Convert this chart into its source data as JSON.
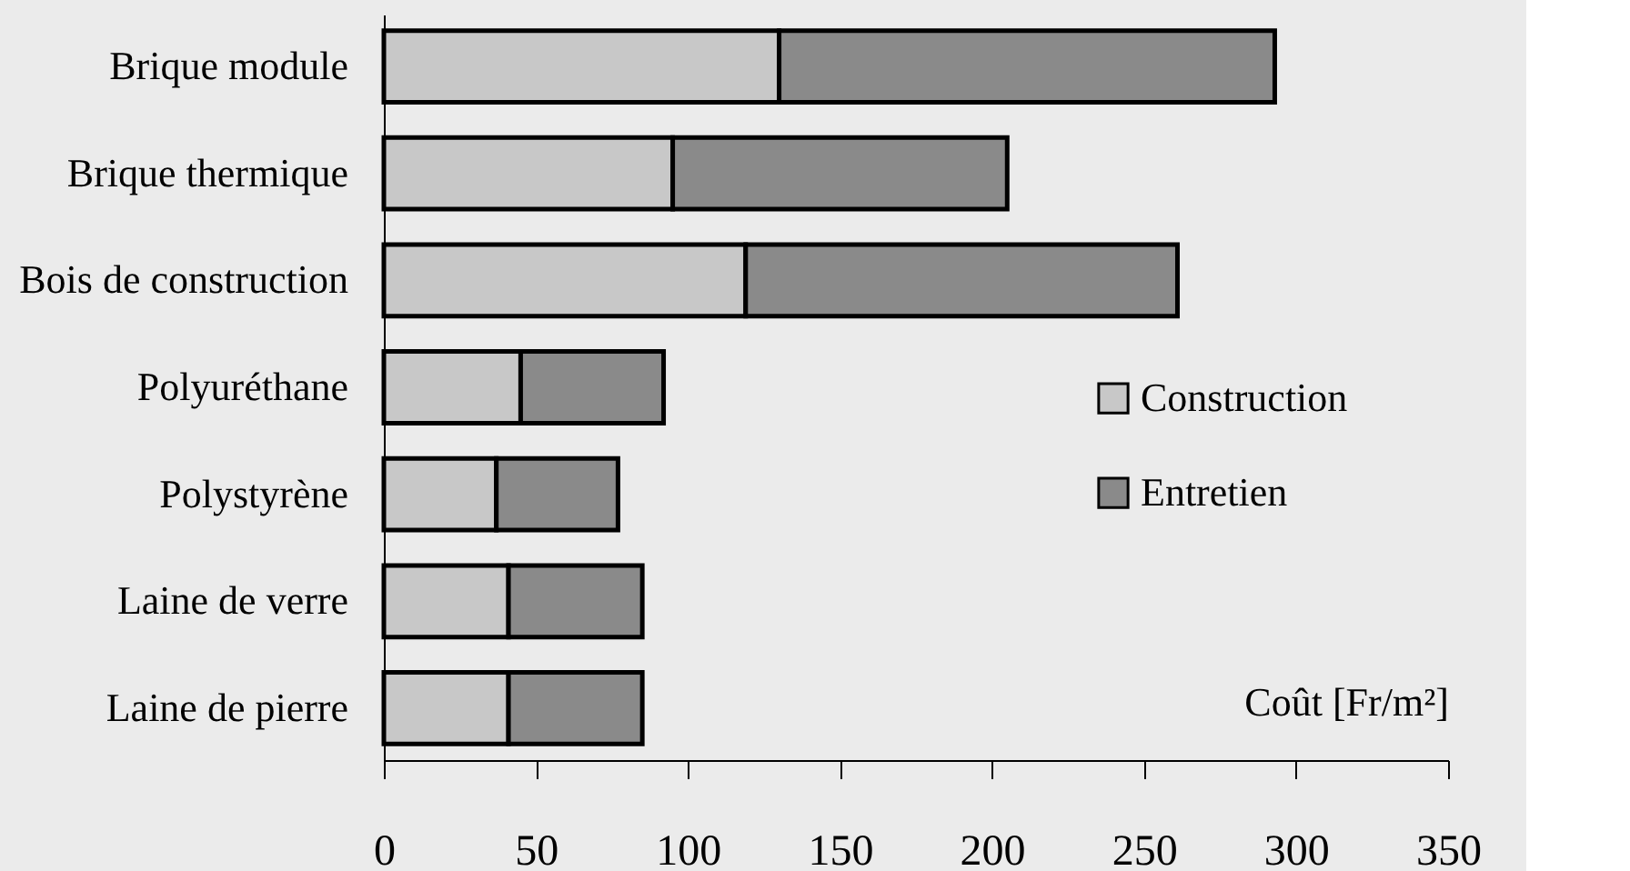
{
  "chart_data": {
    "type": "bar",
    "orientation": "horizontal",
    "stacked": true,
    "categories": [
      "Brique module",
      "Brique thermique",
      "Bois de construction",
      "Polyuréthane",
      "Polystyrène",
      "Laine de verre",
      "Laine de pierre"
    ],
    "series": [
      {
        "name": "Construction",
        "color": "#c8c8c8",
        "values": [
          130,
          95,
          119,
          45,
          37,
          41,
          41
        ]
      },
      {
        "name": "Entretien",
        "color": "#8a8a8a",
        "values": [
          163,
          110,
          142,
          47,
          40,
          44,
          44
        ]
      }
    ],
    "xlabel": "Coût [Fr/m²]",
    "xlim": [
      0,
      350
    ],
    "xticks": [
      0,
      50,
      100,
      150,
      200,
      250,
      300,
      350
    ],
    "grid": false,
    "legend": "right"
  }
}
